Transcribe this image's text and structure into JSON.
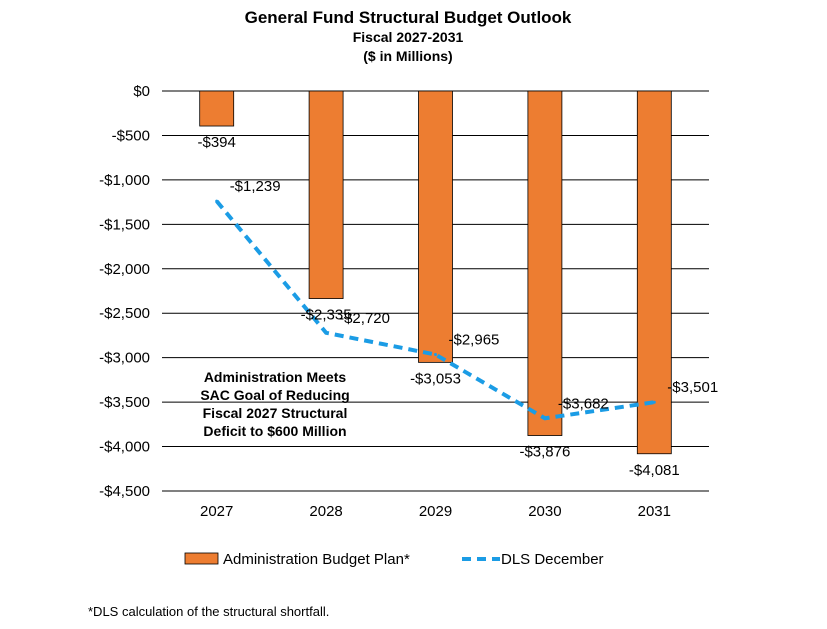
{
  "chart_data": {
    "type": "bar",
    "title": "General Fund Structural Budget Outlook",
    "subtitle_1": "Fiscal 2027-2031",
    "subtitle_2": "($ in Millions)",
    "categories": [
      "2027",
      "2028",
      "2029",
      "2030",
      "2031"
    ],
    "ylim": [
      -4500,
      0
    ],
    "yticks": [
      0,
      -500,
      -1000,
      -1500,
      -2000,
      -2500,
      -3000,
      -3500,
      -4000,
      -4500
    ],
    "ytick_labels": [
      "$0",
      "-$500",
      "-$1,000",
      "-$1,500",
      "-$2,000",
      "-$2,500",
      "-$3,000",
      "-$3,500",
      "-$4,000",
      "-$4,500"
    ],
    "grid": true,
    "series": [
      {
        "name": "Administration Budget Plan*",
        "type": "bar",
        "color": "#ED7D31",
        "values": [
          -394,
          -2335,
          -3053,
          -3876,
          -4081
        ],
        "labels": [
          "-$394",
          "-$2,335",
          "-$3,053",
          "-$3,876",
          "-$4,081"
        ]
      },
      {
        "name": "DLS December",
        "type": "line",
        "style": "dashed",
        "color": "#1B9CE5",
        "values": [
          -1239,
          -2720,
          -2965,
          -3682,
          -3501
        ],
        "labels": [
          "-$1,239",
          "-$2,720",
          "-$2,965",
          "-$3,682",
          "-$3,501"
        ]
      }
    ],
    "annotation": [
      "Administration Meets",
      "SAC Goal of Reducing",
      "Fiscal 2027 Structural",
      "Deficit to $600 Million"
    ],
    "legend_position": "bottom"
  },
  "footnote": "*DLS calculation of the structural shortfall."
}
